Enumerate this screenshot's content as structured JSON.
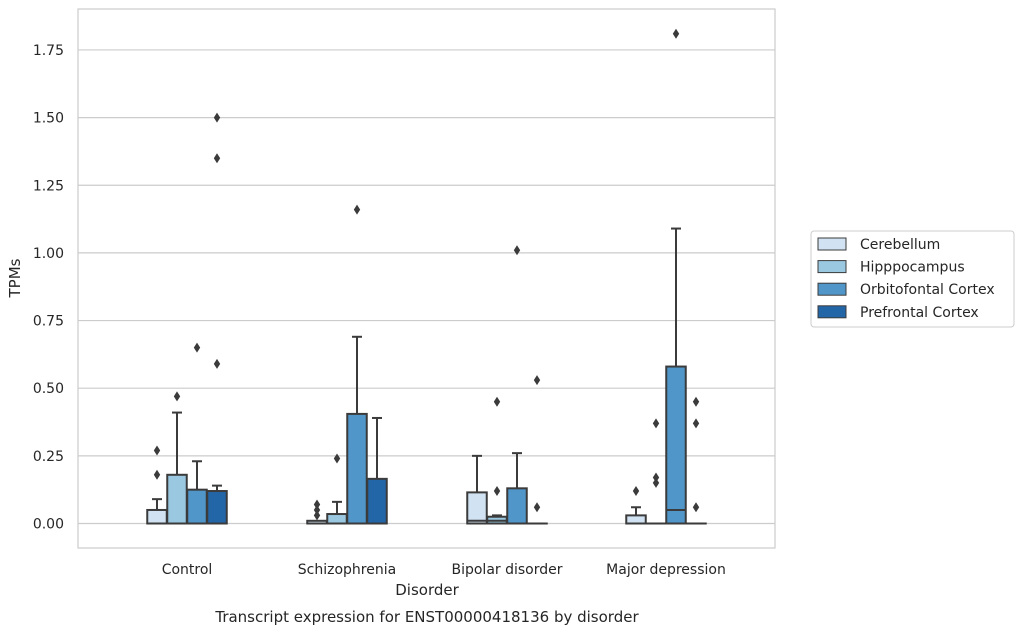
{
  "chart_data": {
    "type": "box",
    "caption": "Transcript expression for ENST00000418136 by disorder",
    "xlabel": "Disorder",
    "ylabel": "TPMs",
    "ylim": [
      -0.09,
      1.89
    ],
    "yticks": [
      "0.00",
      "0.25",
      "0.50",
      "0.75",
      "1.00",
      "1.25",
      "1.50",
      "1.75"
    ],
    "grid": "horizontal",
    "legend_placement": "right",
    "categories": [
      "Control",
      "Schizophrenia",
      "Bipolar disorder",
      "Major depression"
    ],
    "series": [
      {
        "name": "Cerebellum",
        "color": "#d1e2f2",
        "boxes": [
          {
            "q1": 0.0,
            "median": 0.0,
            "q3": 0.05,
            "whisker_low": 0.0,
            "whisker_high": 0.09,
            "outliers": [
              0.18,
              0.27
            ]
          },
          {
            "q1": 0.0,
            "median": 0.0,
            "q3": 0.01,
            "whisker_low": 0.0,
            "whisker_high": 0.01,
            "outliers": [
              0.03,
              0.05,
              0.07
            ]
          },
          {
            "q1": 0.0,
            "median": 0.01,
            "q3": 0.115,
            "whisker_low": 0.0,
            "whisker_high": 0.25,
            "outliers": []
          },
          {
            "q1": 0.0,
            "median": 0.0,
            "q3": 0.03,
            "whisker_low": 0.0,
            "whisker_high": 0.06,
            "outliers": [
              0.12
            ]
          }
        ]
      },
      {
        "name": "Hipppocampus",
        "color": "#9ac8e0",
        "boxes": [
          {
            "q1": 0.0,
            "median": 0.0,
            "q3": 0.18,
            "whisker_low": 0.0,
            "whisker_high": 0.41,
            "outliers": [
              0.47
            ]
          },
          {
            "q1": 0.0,
            "median": 0.0,
            "q3": 0.035,
            "whisker_low": 0.0,
            "whisker_high": 0.08,
            "outliers": [
              0.24
            ]
          },
          {
            "q1": 0.0,
            "median": 0.01,
            "q3": 0.025,
            "whisker_low": 0.0,
            "whisker_high": 0.03,
            "outliers": [
              0.12,
              0.45
            ]
          },
          {
            "q1": 0.0,
            "median": 0.0,
            "q3": 0.0,
            "whisker_low": 0.0,
            "whisker_high": 0.0,
            "outliers": [
              0.15,
              0.17,
              0.37
            ]
          }
        ]
      },
      {
        "name": "Orbitofontal Cortex",
        "color": "#5196c9",
        "boxes": [
          {
            "q1": 0.0,
            "median": 0.0,
            "q3": 0.125,
            "whisker_low": 0.0,
            "whisker_high": 0.23,
            "outliers": [
              0.65
            ]
          },
          {
            "q1": 0.0,
            "median": 0.0,
            "q3": 0.405,
            "whisker_low": 0.0,
            "whisker_high": 0.69,
            "outliers": [
              1.16
            ]
          },
          {
            "q1": 0.0,
            "median": 0.0,
            "q3": 0.13,
            "whisker_low": 0.0,
            "whisker_high": 0.26,
            "outliers": [
              1.01
            ]
          },
          {
            "q1": 0.0,
            "median": 0.05,
            "q3": 0.58,
            "whisker_low": 0.0,
            "whisker_high": 1.09,
            "outliers": [
              1.81
            ]
          }
        ]
      },
      {
        "name": "Prefrontal Cortex",
        "color": "#2366a8",
        "boxes": [
          {
            "q1": 0.0,
            "median": 0.0,
            "q3": 0.12,
            "whisker_low": 0.0,
            "whisker_high": 0.14,
            "outliers": [
              0.59,
              1.35,
              1.5
            ]
          },
          {
            "q1": 0.0,
            "median": 0.0,
            "q3": 0.165,
            "whisker_low": 0.0,
            "whisker_high": 0.39,
            "outliers": []
          },
          {
            "q1": 0.0,
            "median": 0.0,
            "q3": 0.0,
            "whisker_low": 0.0,
            "whisker_high": 0.0,
            "outliers": [
              0.06,
              0.53
            ]
          },
          {
            "q1": 0.0,
            "median": 0.0,
            "q3": 0.0,
            "whisker_low": 0.0,
            "whisker_high": 0.0,
            "outliers": [
              0.06,
              0.37,
              0.45
            ]
          }
        ]
      }
    ]
  }
}
